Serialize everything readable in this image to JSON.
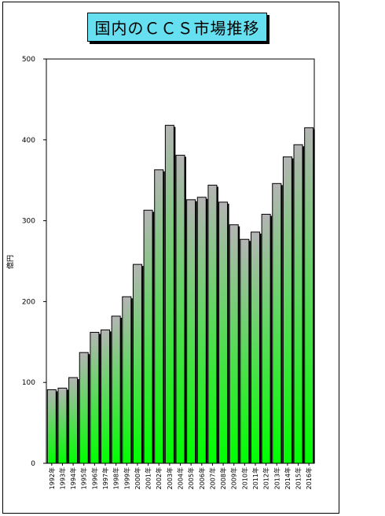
{
  "chart_data": {
    "type": "bar",
    "title": "国内のＣＣＳ市場推移",
    "ylabel": "億円",
    "xlabel": "",
    "ylim": [
      0,
      500
    ],
    "yticks": [
      0,
      100,
      200,
      300,
      400,
      500
    ],
    "grid": false,
    "categories": [
      "1992年",
      "1993年",
      "1994年",
      "1995年",
      "1996年",
      "1997年",
      "1998年",
      "1999年",
      "2000年",
      "2001年",
      "2002年",
      "2003年",
      "2004年",
      "2005年",
      "2006年",
      "2007年",
      "2008年",
      "2009年",
      "2010年",
      "2011年",
      "2012年",
      "2013年",
      "2014年",
      "2015年",
      "2016年"
    ],
    "values": [
      91,
      93,
      106,
      137,
      162,
      165,
      182,
      206,
      246,
      313,
      363,
      418,
      381,
      326,
      329,
      344,
      323,
      295,
      277,
      286,
      308,
      346,
      379,
      394,
      415
    ],
    "colors": {
      "bar_top": "#b4b4b4",
      "bar_bottom": "#00ff00",
      "title_bg": "#66e0f0"
    }
  }
}
